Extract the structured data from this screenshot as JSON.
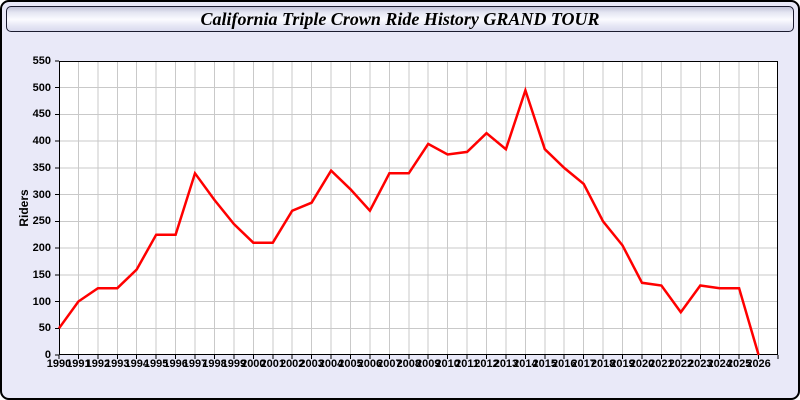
{
  "window": {
    "title": "California Triple Crown Ride History GRAND TOUR"
  },
  "colors": {
    "page_bg": "#e9e9f8",
    "titlebar_top": "#c2c3d8",
    "titlebar_mid": "#fbfbff",
    "titlebar_bottom": "#d9daee",
    "plot_bg": "#ffffff",
    "plot_border": "#000000",
    "grid": "#c9c9c9",
    "line": "#ff0000",
    "text": "#000000"
  },
  "chart_data": {
    "type": "line",
    "title": "California Triple Crown Ride History GRAND TOUR",
    "ylabel": "Riders",
    "xlabel": "",
    "ylim": [
      0,
      550
    ],
    "ytick_step": 50,
    "grid": true,
    "legend": "none",
    "x": [
      1990,
      1991,
      1992,
      1993,
      1994,
      1995,
      1996,
      1997,
      1998,
      1999,
      2000,
      2001,
      2002,
      2003,
      2004,
      2005,
      2006,
      2007,
      2008,
      2009,
      2010,
      2011,
      2012,
      2013,
      2014,
      2015,
      2016,
      2017,
      2018,
      2019,
      2020,
      2021,
      2022,
      2023,
      2024,
      2025,
      2026
    ],
    "series": [
      {
        "name": "Riders",
        "color": "#ff0000",
        "values": [
          50,
          100,
          125,
          125,
          160,
          225,
          225,
          340,
          290,
          245,
          210,
          210,
          270,
          285,
          345,
          310,
          270,
          340,
          340,
          395,
          375,
          380,
          415,
          385,
          495,
          385,
          350,
          320,
          250,
          205,
          135,
          130,
          80,
          130,
          125,
          125,
          0
        ]
      }
    ]
  }
}
